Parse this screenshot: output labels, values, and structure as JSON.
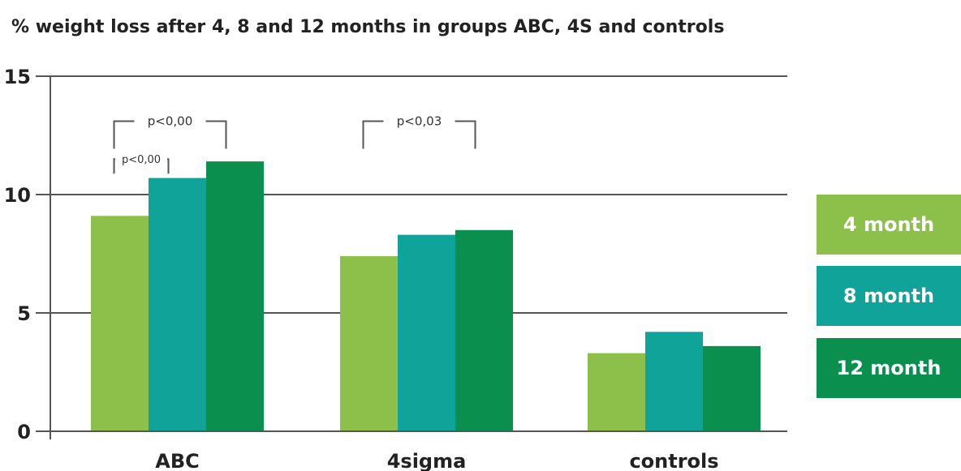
{
  "chart_data": {
    "type": "bar",
    "title": "% weight loss after 4, 8 and 12 months in groups ABC, 4S and controls",
    "xlabel": "",
    "ylabel": "",
    "categories": [
      "ABC",
      "4sigma",
      "controls"
    ],
    "series": [
      {
        "name": "4 month",
        "color": "#8cc04b",
        "values": [
          9.1,
          7.4,
          3.3
        ]
      },
      {
        "name": "8 month",
        "color": "#0fa39a",
        "values": [
          10.7,
          8.3,
          4.2
        ]
      },
      {
        "name": "12 month",
        "color": "#0b8f4f",
        "values": [
          11.4,
          8.5,
          3.6
        ]
      }
    ],
    "ylim": [
      0,
      15
    ],
    "yticks": [
      0,
      5,
      10,
      15
    ],
    "grid": true,
    "legend": "right",
    "annotations": [
      {
        "text": "p<0,00",
        "category": "ABC",
        "from_series": 0,
        "to_series": 2,
        "level": 13.1
      },
      {
        "text": "p<0,00",
        "category": "ABC",
        "from_series": 0,
        "to_series": 1,
        "level": 11.5
      },
      {
        "text": "p<0,03",
        "category": "4sigma",
        "from_series": 0,
        "to_series": 2,
        "level": 13.1
      }
    ]
  }
}
